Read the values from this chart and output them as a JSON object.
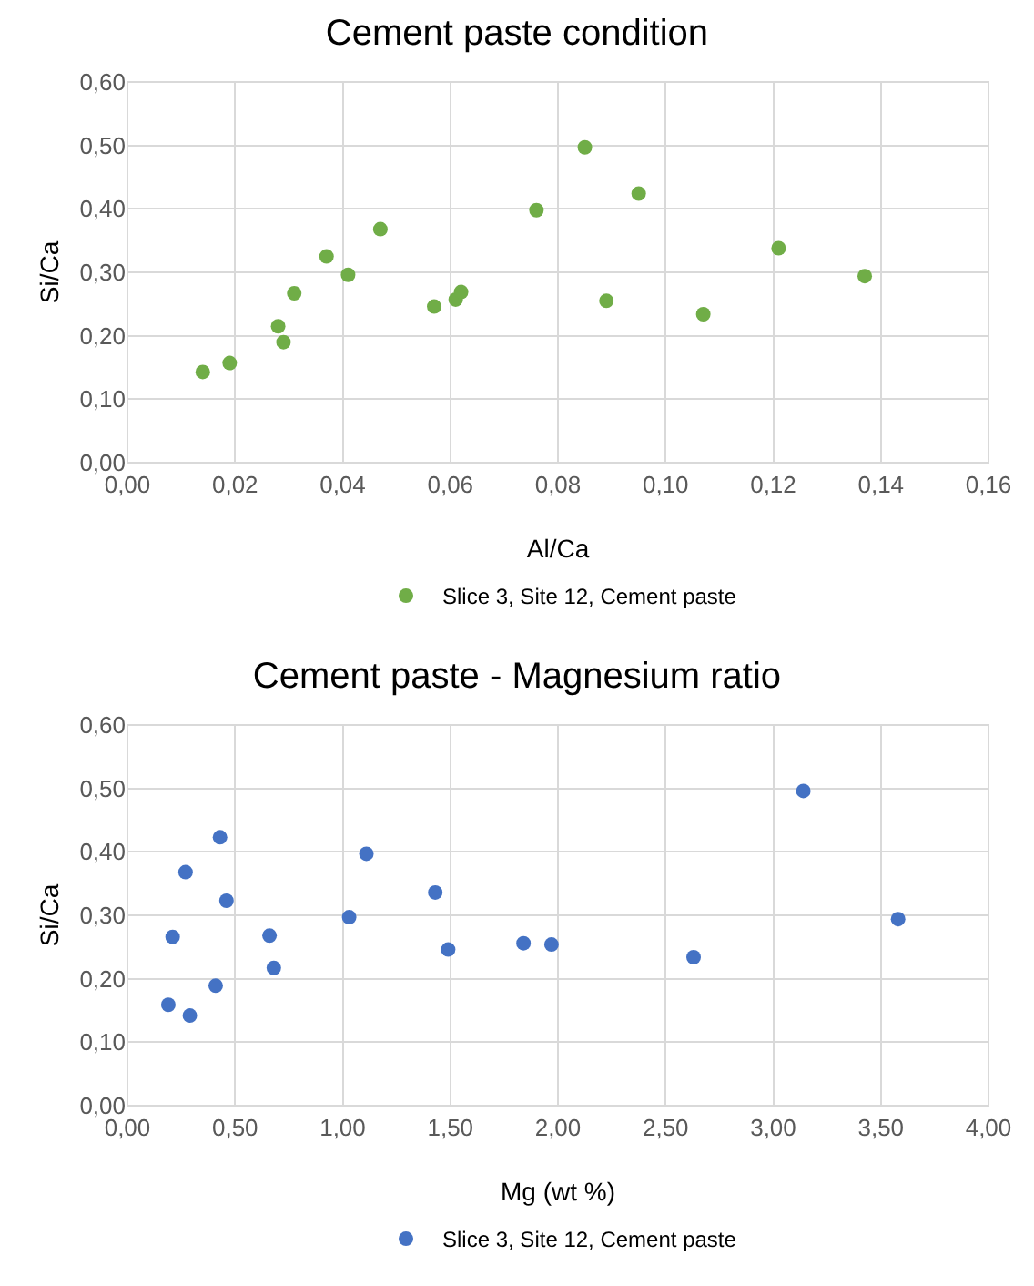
{
  "chart_data": [
    {
      "type": "scatter",
      "title": "Cement paste condition",
      "xlabel": "Al/Ca",
      "ylabel": "Si/Ca",
      "marker": "circle",
      "grid": true,
      "legend": "bottom",
      "xlim": [
        0,
        0.16
      ],
      "xticks": [
        {
          "value": 0,
          "label": "0,00"
        },
        {
          "value": 0.02,
          "label": "0,02"
        },
        {
          "value": 0.04,
          "label": "0,04"
        },
        {
          "value": 0.06,
          "label": "0,06"
        },
        {
          "value": 0.08,
          "label": "0,08"
        },
        {
          "value": 0.1,
          "label": "0,10"
        },
        {
          "value": 0.12,
          "label": "0,12"
        },
        {
          "value": 0.14,
          "label": "0,14"
        },
        {
          "value": 0.16,
          "label": "0,16"
        }
      ],
      "ylim": [
        0,
        0.6
      ],
      "yticks": [
        {
          "value": 0,
          "label": "0,00"
        },
        {
          "value": 0.1,
          "label": "0,10"
        },
        {
          "value": 0.2,
          "label": "0,20"
        },
        {
          "value": 0.3,
          "label": "0,30"
        },
        {
          "value": 0.4,
          "label": "0,40"
        },
        {
          "value": 0.5,
          "label": "0,50"
        },
        {
          "value": 0.6,
          "label": "0,60"
        }
      ],
      "series": [
        {
          "name": "Slice 3, Site 12, Cement paste",
          "color": "#70ad47",
          "x": [
            0.014,
            0.019,
            0.028,
            0.029,
            0.031,
            0.037,
            0.041,
            0.047,
            0.057,
            0.061,
            0.062,
            0.076,
            0.085,
            0.089,
            0.095,
            0.107,
            0.121,
            0.137
          ],
          "values": [
            0.143,
            0.157,
            0.215,
            0.19,
            0.267,
            0.325,
            0.296,
            0.368,
            0.246,
            0.257,
            0.269,
            0.398,
            0.497,
            0.255,
            0.424,
            0.234,
            0.338,
            0.294
          ]
        }
      ]
    },
    {
      "type": "scatter",
      "title": "Cement paste - Magnesium ratio",
      "xlabel": "Mg (wt %)",
      "ylabel": "Si/Ca",
      "marker": "circle",
      "grid": true,
      "legend": "bottom",
      "xlim": [
        0,
        4
      ],
      "xticks": [
        {
          "value": 0,
          "label": "0,00"
        },
        {
          "value": 0.5,
          "label": "0,50"
        },
        {
          "value": 1,
          "label": "1,00"
        },
        {
          "value": 1.5,
          "label": "1,50"
        },
        {
          "value": 2,
          "label": "2,00"
        },
        {
          "value": 2.5,
          "label": "2,50"
        },
        {
          "value": 3,
          "label": "3,00"
        },
        {
          "value": 3.5,
          "label": "3,50"
        },
        {
          "value": 4,
          "label": "4,00"
        }
      ],
      "ylim": [
        0,
        0.6
      ],
      "yticks": [
        {
          "value": 0,
          "label": "0,00"
        },
        {
          "value": 0.1,
          "label": "0,10"
        },
        {
          "value": 0.2,
          "label": "0,20"
        },
        {
          "value": 0.3,
          "label": "0,30"
        },
        {
          "value": 0.4,
          "label": "0,40"
        },
        {
          "value": 0.5,
          "label": "0,50"
        },
        {
          "value": 0.6,
          "label": "0,60"
        }
      ],
      "series": [
        {
          "name": "Slice 3, Site 12, Cement paste",
          "color": "#4472c4",
          "x": [
            3.14,
            0.43,
            0.27,
            1.11,
            0.46,
            1.43,
            0.21,
            1.03,
            0.66,
            3.58,
            1.49,
            1.84,
            1.97,
            0.68,
            2.63,
            0.41,
            0.19,
            0.29
          ],
          "values": [
            0.496,
            0.423,
            0.368,
            0.397,
            0.323,
            0.336,
            0.266,
            0.297,
            0.268,
            0.294,
            0.246,
            0.256,
            0.254,
            0.217,
            0.234,
            0.189,
            0.159,
            0.142
          ]
        }
      ]
    }
  ]
}
